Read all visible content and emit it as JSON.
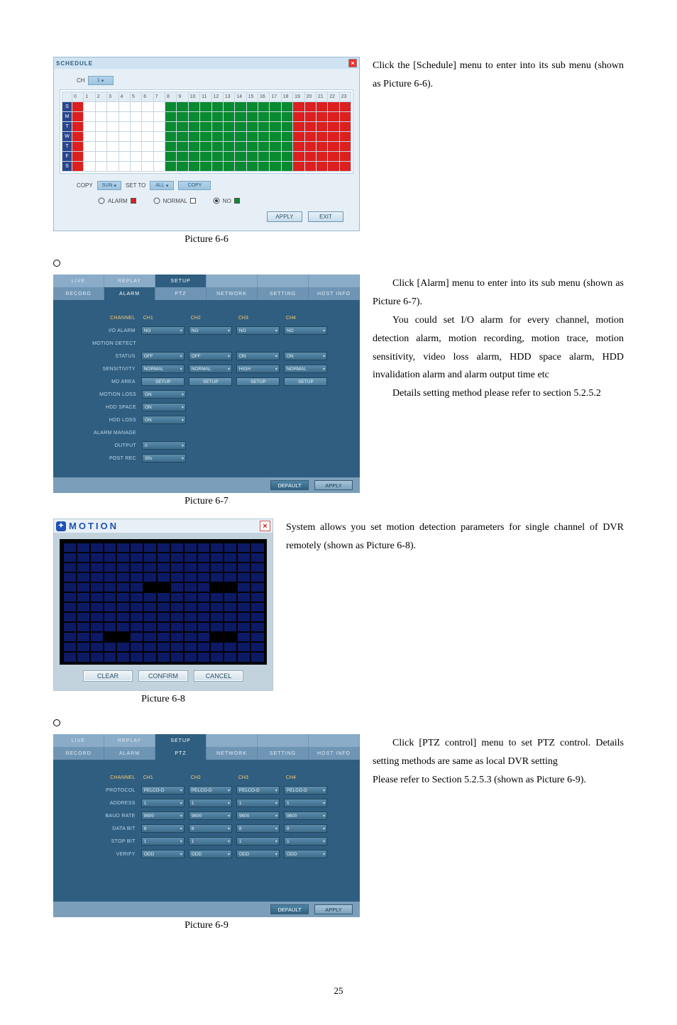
{
  "page_number": "25",
  "section66": {
    "caption": "Picture 6-6",
    "text": "Click the [Schedule] menu to enter into its sub menu (shown as Picture 6-6).",
    "window_title": "SCHEDULE",
    "ch_label": "CH",
    "ch_value": "1",
    "hours": [
      "0",
      "1",
      "2",
      "3",
      "4",
      "5",
      "6",
      "7",
      "8",
      "9",
      "10",
      "11",
      "12",
      "13",
      "14",
      "15",
      "16",
      "17",
      "18",
      "19",
      "20",
      "21",
      "22",
      "23"
    ],
    "days": [
      "S",
      "M",
      "T",
      "W",
      "T",
      "F",
      "S"
    ],
    "copy_label": "COPY",
    "copy_from": "SUN",
    "setto_label": "SET TO",
    "setto_value": "ALL",
    "copy_btn": "COPY",
    "radios": {
      "alarm": "ALARM",
      "normal": "NORMAL",
      "no": "NO"
    },
    "apply": "APPLY",
    "exit": "EXIT",
    "colors": {
      "green": "#0a8a30",
      "red": "#dd1f1f",
      "dayhead": "#28468c",
      "panel": "#cfe3f2",
      "body": "#e6eff6"
    }
  },
  "section67": {
    "caption": "Picture 6-7",
    "para1": "Click [Alarm] menu to enter into its sub menu (shown as Picture 6-7).",
    "para2": "You could set I/O alarm for every channel, motion detection alarm, motion recording, motion trace, motion sensitivity, video loss alarm, HDD space alarm, HDD invalidation alarm and alarm output time etc",
    "para3": "Details setting method please refer to section 5.2.5.2",
    "tabs_row1": [
      "LIVE",
      "REPLAY",
      "SETUP"
    ],
    "tabs_row2": [
      "RECORD",
      "ALARM",
      "PTZ",
      "NETWORK",
      "SETTING",
      "HOST INFO"
    ],
    "active_tab": 1,
    "head": [
      "CH1",
      "CH2",
      "CH3",
      "CH4"
    ],
    "rows": [
      {
        "label": "CHANNEL",
        "type": "head"
      },
      {
        "label": "I/O ALARM",
        "cells": [
          "NO",
          "NO",
          "NO",
          "NO"
        ]
      },
      {
        "label": "MOTION DETECT",
        "type": "label-only"
      },
      {
        "label": "STATUS",
        "cells": [
          "OFF",
          "OFF",
          "ON",
          "ON"
        ]
      },
      {
        "label": "SENSITIVITY",
        "cells": [
          "NORMAL",
          "NORMAL",
          "HIGH",
          "NORMAL"
        ]
      },
      {
        "label": "MD AREA",
        "cells": [
          "SETUP",
          "SETUP",
          "SETUP",
          "SETUP"
        ],
        "btn": true
      },
      {
        "label": "MOTION LOSS",
        "cells": [
          "ON"
        ]
      },
      {
        "label": "HDD SPACE",
        "cells": [
          "ON"
        ]
      },
      {
        "label": "HDD LOSS",
        "cells": [
          "ON"
        ]
      },
      {
        "label": "ALARM MANAGE",
        "type": "label-only"
      },
      {
        "label": "OUTPUT",
        "cells": [
          "0"
        ]
      },
      {
        "label": "POST REC",
        "cells": [
          "30s"
        ]
      }
    ],
    "footer": {
      "default": "DEFAULT",
      "apply": "APPLY"
    }
  },
  "section68": {
    "caption": "Picture 6-8",
    "text": "System allows you set motion detection parameters for single channel of DVR remotely (shown as Picture 6-8).",
    "title": "MOTION",
    "rows": 12,
    "cols": 15,
    "cell_color": "#0c1a66",
    "off_cell_color": "#000000",
    "buttons": {
      "clear": "CLEAR",
      "confirm": "CONFIRM",
      "cancel": "CANCEL"
    }
  },
  "section69": {
    "caption": "Picture 6-9",
    "para1": "Click [PTZ control] menu to set PTZ control. Details setting methods are same as local DVR setting",
    "para2": "Please refer to Section 5.2.5.3 (shown as Picture 6-9).",
    "tabs_row1": [
      "LIVE",
      "REPLAY",
      "SETUP"
    ],
    "tabs_row2": [
      "RECORD",
      "ALARM",
      "PTZ",
      "NETWORK",
      "SETTING",
      "HOST INFO"
    ],
    "active_tab": 2,
    "head": [
      "CH1",
      "CH2",
      "CH3",
      "CH4"
    ],
    "rows": [
      {
        "label": "CHANNEL",
        "type": "head"
      },
      {
        "label": "PROTOCOL",
        "cells": [
          "PELCO-D",
          "PELCO-D",
          "PELCO-D",
          "PELCO-D"
        ]
      },
      {
        "label": "ADDRESS",
        "cells": [
          "1",
          "1",
          "1",
          "1"
        ]
      },
      {
        "label": "BAUD RATE",
        "cells": [
          "9600",
          "9600",
          "9600",
          "9600"
        ]
      },
      {
        "label": "DATA BIT",
        "cells": [
          "8",
          "8",
          "8",
          "8"
        ]
      },
      {
        "label": "STOP BIT",
        "cells": [
          "1",
          "1",
          "1",
          "1"
        ]
      },
      {
        "label": "VERIFY",
        "cells": [
          "ODD",
          "ODD",
          "ODD",
          "ODD"
        ]
      }
    ],
    "footer": {
      "default": "DEFAULT",
      "apply": "APPLY"
    }
  }
}
